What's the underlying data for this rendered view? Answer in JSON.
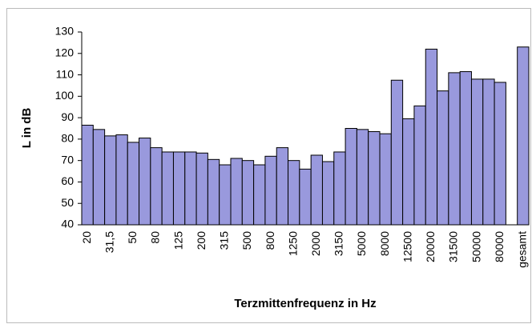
{
  "chart_data": {
    "type": "bar",
    "x_label": "Terzmittenfrequenz in Hz",
    "y_label": "L in dB",
    "categories": [
      "20",
      null,
      "31,5",
      null,
      "50",
      null,
      "80",
      null,
      "125",
      null,
      "200",
      null,
      "315",
      null,
      "500",
      null,
      "800",
      null,
      "1250",
      null,
      "2000",
      null,
      "3150",
      null,
      "5000",
      null,
      "8000",
      null,
      "12500",
      null,
      "20000",
      null,
      "31500",
      null,
      "50000",
      null,
      "80000",
      null,
      "gesamt"
    ],
    "values": [
      86.5,
      84.5,
      81.5,
      82,
      78.5,
      80.5,
      76,
      74,
      74,
      74,
      73.5,
      70.5,
      68,
      71,
      70,
      68,
      72,
      76,
      70,
      66,
      72.5,
      69.5,
      74,
      85,
      84.5,
      83.5,
      82.5,
      107.5,
      89.5,
      95.5,
      122,
      102.5,
      111,
      111.5,
      108,
      108,
      106.5,
      null,
      123
    ],
    "color": "#9999dd",
    "ylim": [
      40,
      130
    ],
    "yticks": [
      40,
      50,
      60,
      70,
      80,
      90,
      100,
      110,
      120,
      130
    ],
    "grid": false
  }
}
